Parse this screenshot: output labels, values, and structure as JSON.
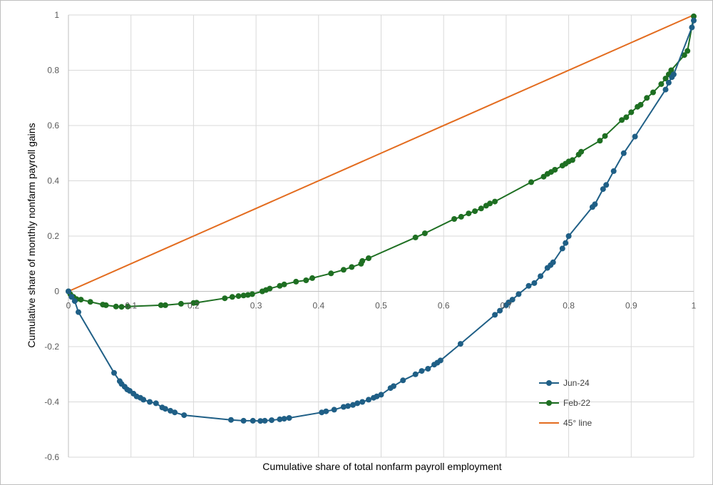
{
  "chart_data": {
    "type": "scatter",
    "title": "",
    "xlabel": "Cumulative share of total nonfarm payroll employment",
    "ylabel": "Cumulative share of monthly nonfarm payroll gains",
    "xlim": [
      0,
      1
    ],
    "ylim": [
      -0.6,
      1
    ],
    "x_ticks": [
      "0",
      "0.1",
      "0.2",
      "0.3",
      "0.4",
      "0.5",
      "0.6",
      "0.7",
      "0.8",
      "0.9",
      "1"
    ],
    "y_ticks": [
      "-0.6",
      "-0.4",
      "-0.2",
      "0",
      "0.2",
      "0.4",
      "0.6",
      "0.8",
      "1"
    ],
    "grid": true,
    "legend_position": "bottom-right",
    "series": [
      {
        "name": "Jun-24",
        "color": "#1f5f86",
        "markers": true,
        "points": [
          [
            0.0,
            0.0
          ],
          [
            0.005,
            -0.02
          ],
          [
            0.01,
            -0.035
          ],
          [
            0.016,
            -0.075
          ],
          [
            0.073,
            -0.295
          ],
          [
            0.082,
            -0.325
          ],
          [
            0.085,
            -0.335
          ],
          [
            0.09,
            -0.345
          ],
          [
            0.094,
            -0.355
          ],
          [
            0.098,
            -0.36
          ],
          [
            0.104,
            -0.37
          ],
          [
            0.109,
            -0.38
          ],
          [
            0.115,
            -0.385
          ],
          [
            0.12,
            -0.392
          ],
          [
            0.13,
            -0.4
          ],
          [
            0.14,
            -0.405
          ],
          [
            0.15,
            -0.42
          ],
          [
            0.155,
            -0.425
          ],
          [
            0.163,
            -0.432
          ],
          [
            0.17,
            -0.438
          ],
          [
            0.185,
            -0.448
          ],
          [
            0.26,
            -0.465
          ],
          [
            0.28,
            -0.468
          ],
          [
            0.295,
            -0.468
          ],
          [
            0.307,
            -0.469
          ],
          [
            0.314,
            -0.468
          ],
          [
            0.325,
            -0.466
          ],
          [
            0.338,
            -0.463
          ],
          [
            0.345,
            -0.461
          ],
          [
            0.353,
            -0.458
          ],
          [
            0.405,
            -0.438
          ],
          [
            0.412,
            -0.434
          ],
          [
            0.425,
            -0.428
          ],
          [
            0.44,
            -0.418
          ],
          [
            0.447,
            -0.415
          ],
          [
            0.455,
            -0.411
          ],
          [
            0.462,
            -0.405
          ],
          [
            0.47,
            -0.4
          ],
          [
            0.48,
            -0.392
          ],
          [
            0.488,
            -0.385
          ],
          [
            0.493,
            -0.38
          ],
          [
            0.5,
            -0.374
          ],
          [
            0.515,
            -0.35
          ],
          [
            0.52,
            -0.343
          ],
          [
            0.535,
            -0.322
          ],
          [
            0.555,
            -0.3
          ],
          [
            0.565,
            -0.288
          ],
          [
            0.575,
            -0.28
          ],
          [
            0.585,
            -0.265
          ],
          [
            0.59,
            -0.258
          ],
          [
            0.595,
            -0.25
          ],
          [
            0.627,
            -0.19
          ],
          [
            0.682,
            -0.085
          ],
          [
            0.69,
            -0.07
          ],
          [
            0.7,
            -0.05
          ],
          [
            0.704,
            -0.04
          ],
          [
            0.71,
            -0.03
          ],
          [
            0.72,
            -0.01
          ],
          [
            0.736,
            0.02
          ],
          [
            0.745,
            0.03
          ],
          [
            0.755,
            0.055
          ],
          [
            0.766,
            0.085
          ],
          [
            0.771,
            0.095
          ],
          [
            0.775,
            0.105
          ],
          [
            0.79,
            0.155
          ],
          [
            0.795,
            0.175
          ],
          [
            0.8,
            0.2
          ],
          [
            0.838,
            0.305
          ],
          [
            0.842,
            0.315
          ],
          [
            0.855,
            0.37
          ],
          [
            0.86,
            0.385
          ],
          [
            0.872,
            0.435
          ],
          [
            0.888,
            0.5
          ],
          [
            0.906,
            0.56
          ],
          [
            0.955,
            0.73
          ],
          [
            0.96,
            0.755
          ],
          [
            0.965,
            0.775
          ],
          [
            0.968,
            0.785
          ],
          [
            0.997,
            0.955
          ],
          [
            1.0,
            0.98
          ]
        ]
      },
      {
        "name": "Feb-22",
        "color": "#1e6f22",
        "markers": true,
        "points": [
          [
            0.0,
            0.0
          ],
          [
            0.003,
            -0.01
          ],
          [
            0.008,
            -0.02
          ],
          [
            0.013,
            -0.028
          ],
          [
            0.02,
            -0.03
          ],
          [
            0.035,
            -0.038
          ],
          [
            0.055,
            -0.048
          ],
          [
            0.06,
            -0.05
          ],
          [
            0.076,
            -0.055
          ],
          [
            0.085,
            -0.056
          ],
          [
            0.095,
            -0.055
          ],
          [
            0.148,
            -0.05
          ],
          [
            0.155,
            -0.05
          ],
          [
            0.18,
            -0.045
          ],
          [
            0.2,
            -0.042
          ],
          [
            0.205,
            -0.041
          ],
          [
            0.25,
            -0.025
          ],
          [
            0.262,
            -0.02
          ],
          [
            0.272,
            -0.017
          ],
          [
            0.28,
            -0.015
          ],
          [
            0.287,
            -0.013
          ],
          [
            0.294,
            -0.01
          ],
          [
            0.31,
            0.0
          ],
          [
            0.316,
            0.005
          ],
          [
            0.322,
            0.01
          ],
          [
            0.338,
            0.02
          ],
          [
            0.345,
            0.025
          ],
          [
            0.364,
            0.035
          ],
          [
            0.38,
            0.04
          ],
          [
            0.39,
            0.048
          ],
          [
            0.42,
            0.065
          ],
          [
            0.44,
            0.078
          ],
          [
            0.453,
            0.088
          ],
          [
            0.468,
            0.1
          ],
          [
            0.47,
            0.11
          ],
          [
            0.48,
            0.12
          ],
          [
            0.555,
            0.195
          ],
          [
            0.57,
            0.21
          ],
          [
            0.617,
            0.262
          ],
          [
            0.628,
            0.27
          ],
          [
            0.64,
            0.282
          ],
          [
            0.65,
            0.29
          ],
          [
            0.66,
            0.3
          ],
          [
            0.668,
            0.31
          ],
          [
            0.674,
            0.318
          ],
          [
            0.682,
            0.325
          ],
          [
            0.74,
            0.395
          ],
          [
            0.76,
            0.415
          ],
          [
            0.766,
            0.425
          ],
          [
            0.772,
            0.432
          ],
          [
            0.778,
            0.44
          ],
          [
            0.79,
            0.455
          ],
          [
            0.795,
            0.462
          ],
          [
            0.8,
            0.47
          ],
          [
            0.806,
            0.475
          ],
          [
            0.816,
            0.495
          ],
          [
            0.82,
            0.505
          ],
          [
            0.85,
            0.545
          ],
          [
            0.858,
            0.562
          ],
          [
            0.885,
            0.62
          ],
          [
            0.892,
            0.63
          ],
          [
            0.9,
            0.648
          ],
          [
            0.91,
            0.668
          ],
          [
            0.915,
            0.675
          ],
          [
            0.925,
            0.7
          ],
          [
            0.935,
            0.72
          ],
          [
            0.948,
            0.75
          ],
          [
            0.955,
            0.77
          ],
          [
            0.96,
            0.785
          ],
          [
            0.964,
            0.8
          ],
          [
            0.985,
            0.855
          ],
          [
            0.99,
            0.87
          ],
          [
            1.0,
            0.995
          ]
        ]
      },
      {
        "name": "45° line",
        "color": "#e36c1f",
        "markers": false,
        "points": [
          [
            0,
            0
          ],
          [
            1,
            1
          ]
        ]
      }
    ]
  }
}
